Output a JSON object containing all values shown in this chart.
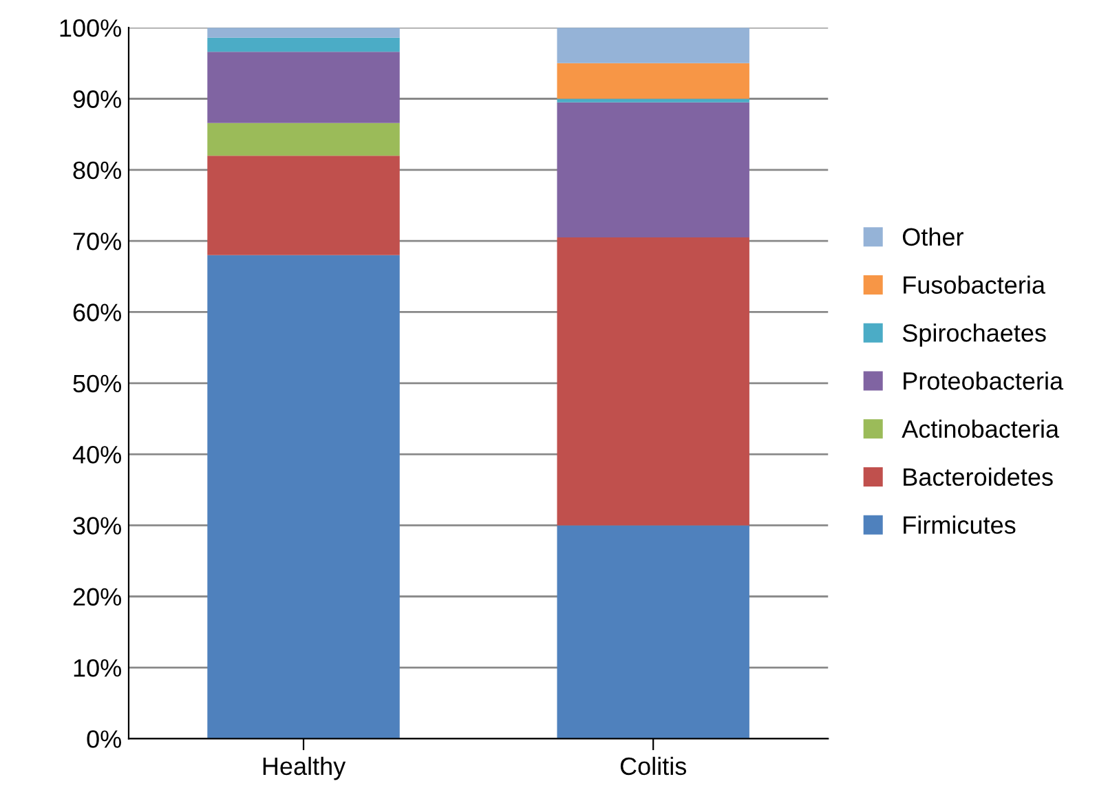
{
  "chart_data": {
    "type": "bar",
    "stacked": true,
    "categories": [
      "Healthy",
      "Colitis"
    ],
    "series": [
      {
        "name": "Firmicutes",
        "color": "#4f81bd",
        "values": [
          68,
          30
        ]
      },
      {
        "name": "Bacteroidetes",
        "color": "#c0504d",
        "values": [
          14,
          40.5
        ]
      },
      {
        "name": "Actinobacteria",
        "color": "#9bbb59",
        "values": [
          4.6,
          0
        ]
      },
      {
        "name": "Proteobacteria",
        "color": "#8064a2",
        "values": [
          10,
          19
        ]
      },
      {
        "name": "Spirochaetes",
        "color": "#4bacc6",
        "values": [
          2,
          0.5
        ]
      },
      {
        "name": "Fusobacteria",
        "color": "#f79646",
        "values": [
          0,
          5
        ]
      },
      {
        "name": "Other",
        "color": "#95b3d7",
        "values": [
          1.4,
          5
        ]
      }
    ],
    "ylim": [
      0,
      100
    ],
    "yticks": [
      {
        "value": 0,
        "label": "0%"
      },
      {
        "value": 10,
        "label": "10%"
      },
      {
        "value": 20,
        "label": "20%"
      },
      {
        "value": 30,
        "label": "30%"
      },
      {
        "value": 40,
        "label": "40%"
      },
      {
        "value": 50,
        "label": "50%"
      },
      {
        "value": 60,
        "label": "60%"
      },
      {
        "value": 70,
        "label": "70%"
      },
      {
        "value": 80,
        "label": "80%"
      },
      {
        "value": 90,
        "label": "90%"
      },
      {
        "value": 100,
        "label": "100%"
      }
    ],
    "grid": "y",
    "legend": "right"
  }
}
